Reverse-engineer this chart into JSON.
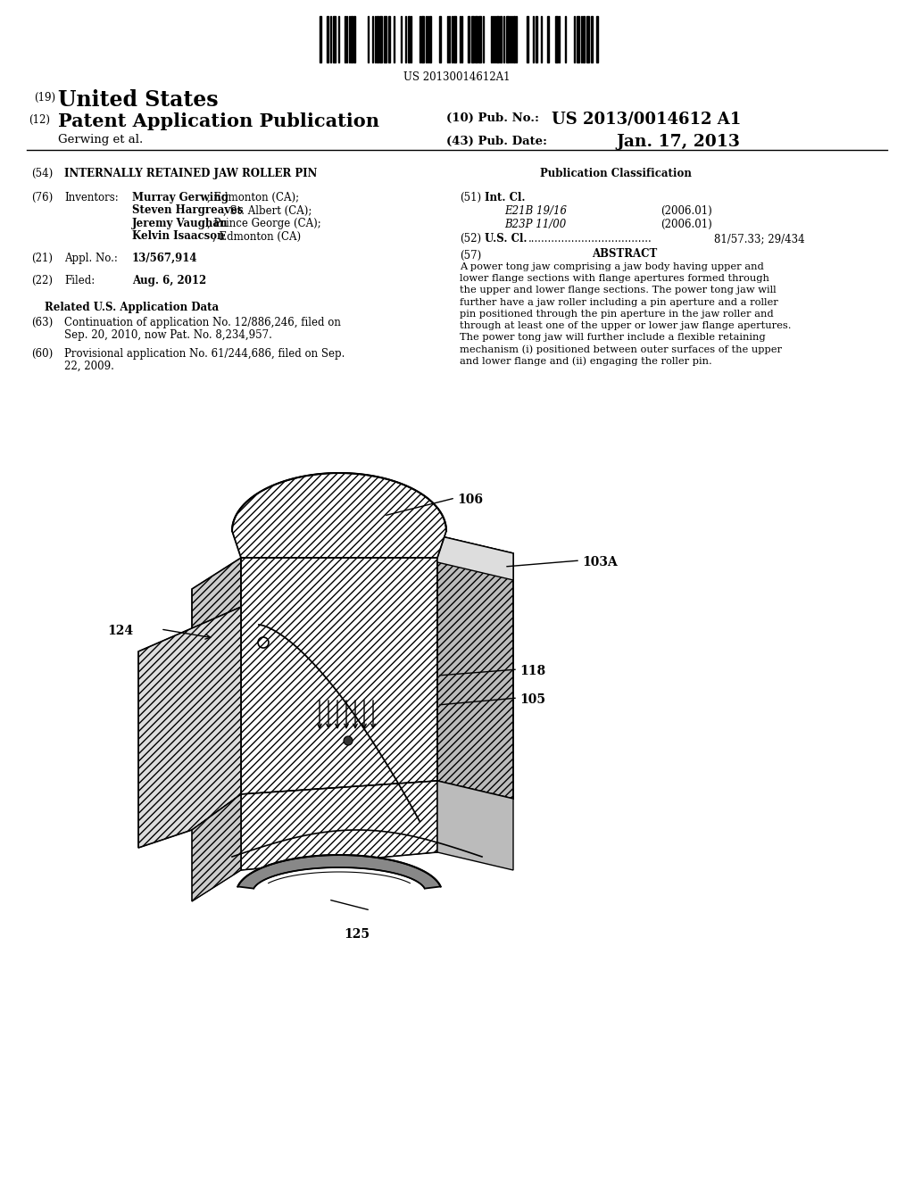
{
  "background_color": "#ffffff",
  "barcode_text": "US 20130014612A1",
  "header": {
    "country_prefix": "(19)",
    "country_name": "United States",
    "type_prefix": "(12)",
    "type_name": "Patent Application Publication",
    "pub_no_prefix": "(10) Pub. No.:",
    "pub_no": "US 2013/0014612 A1",
    "author": "Gerwing et al.",
    "pub_date_prefix": "(43) Pub. Date:",
    "pub_date": "Jan. 17, 2013"
  },
  "section54_label": "(54)",
  "section54_title": "INTERNALLY RETAINED JAW ROLLER PIN",
  "pub_class_header": "Publication Classification",
  "section76_label": "(76)",
  "section76_prefix": "Inventors:",
  "inventors_bold": [
    "Murray Gerwing",
    "Steven Hargreaves",
    "Jeremy Vaughan",
    "Kelvin Isaacson"
  ],
  "inventors_rest": [
    ", Edmonton (CA);",
    ", St. Albert (CA);",
    ", Prince George (CA);",
    ", Edmonton (CA)"
  ],
  "section51_label": "(51)",
  "section51_prefix": "Int. Cl.",
  "int_cl_entries": [
    [
      "E21B 19/16",
      "(2006.01)"
    ],
    [
      "B23P 11/00",
      "(2006.01)"
    ]
  ],
  "section52_label": "(52)",
  "section52_prefix": "U.S. Cl.",
  "section52_dots": ".....................................",
  "section52_value": "81/57.33; 29/434",
  "section21_label": "(21)",
  "section21_prefix": "Appl. No.:",
  "section21_value": "13/567,914",
  "section22_label": "(22)",
  "section22_prefix": "Filed:",
  "section22_value": "Aug. 6, 2012",
  "related_header": "Related U.S. Application Data",
  "section63_label": "(63)",
  "section63_line1": "Continuation of application No. 12/886,246, filed on",
  "section63_line2": "Sep. 20, 2010, now Pat. No. 8,234,957.",
  "section60_label": "(60)",
  "section60_line1": "Provisional application No. 61/244,686, filed on Sep.",
  "section60_line2": "22, 2009.",
  "section57_label": "(57)",
  "section57_header": "ABSTRACT",
  "abstract_lines": [
    "A power tong jaw comprising a jaw body having upper and",
    "lower flange sections with flange apertures formed through",
    "the upper and lower flange sections. The power tong jaw will",
    "further have a jaw roller including a pin aperture and a roller",
    "pin positioned through the pin aperture in the jaw roller and",
    "through at least one of the upper or lower jaw flange apertures.",
    "The power tong jaw will further include a flexible retaining",
    "mechanism (i) positioned between outer surfaces of the upper",
    "and lower flange and (ii) engaging the roller pin."
  ]
}
